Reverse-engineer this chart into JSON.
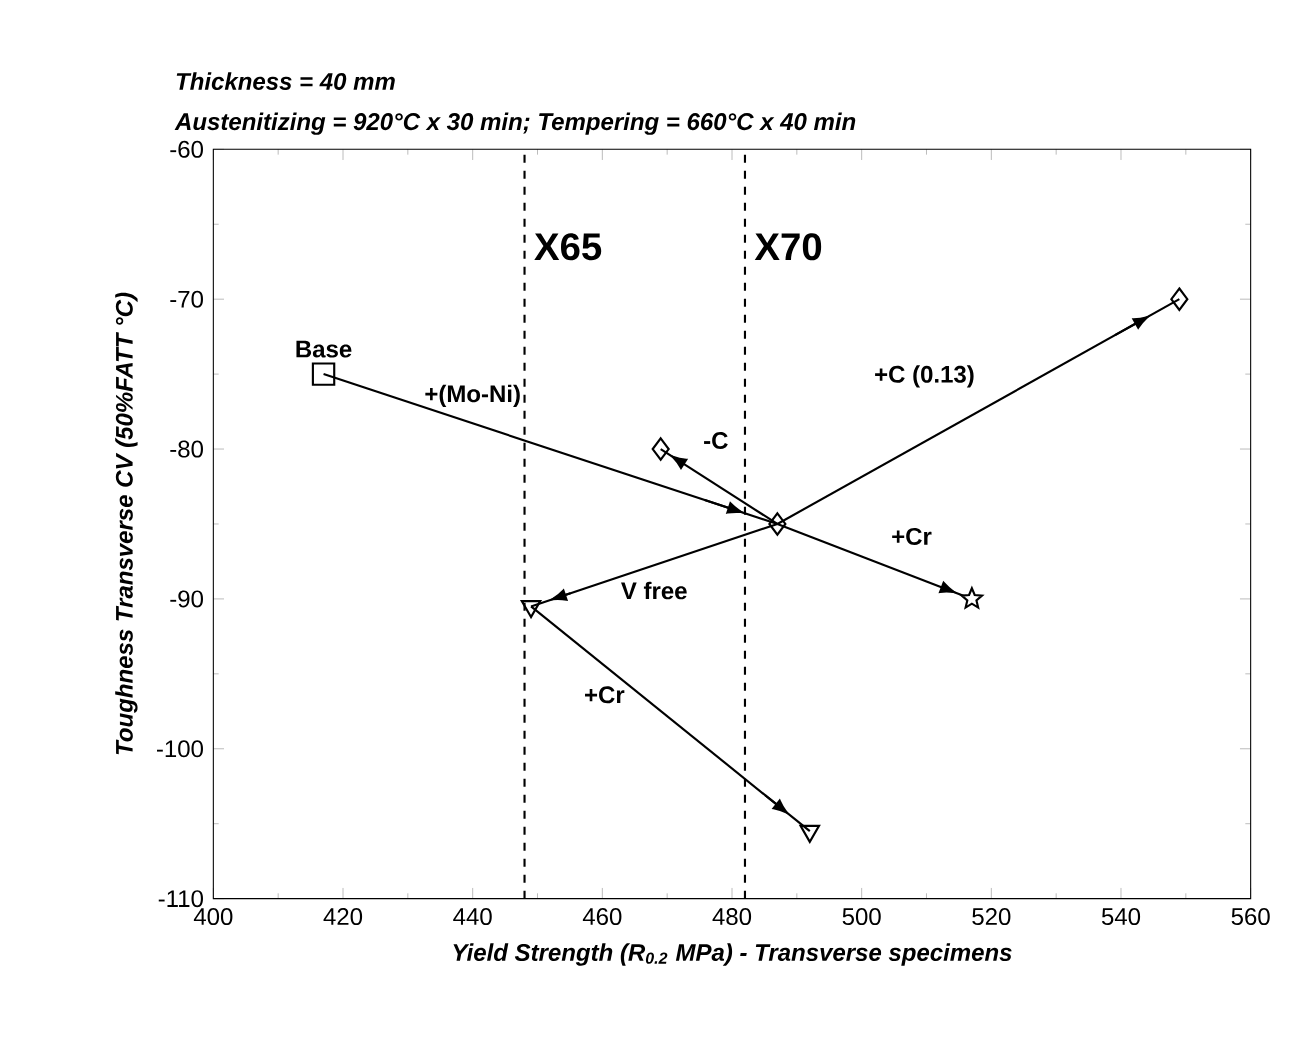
{
  "chart_data": {
    "type": "scatter",
    "title": "Thickness = 40 mm",
    "subtitle": "Austenitizing = 920°C x 30 min; Tempering = 660°C x 40 min",
    "xlabel": "Yield Strength (R$_{0.2}$ MPa) - Transverse specimens",
    "ylabel": "Toughness Transverse CV (50%FATT °C)",
    "xlim": [
      400,
      560
    ],
    "ylim": [
      -110,
      -60
    ],
    "xticks": [
      400,
      420,
      440,
      460,
      480,
      500,
      520,
      540,
      560
    ],
    "yticks": [
      -110,
      -100,
      -90,
      -80,
      -70,
      -60
    ],
    "grid": false,
    "series": [
      {
        "type": "line",
        "marker": "none",
        "color": "#000000",
        "x": [
          417,
          487
        ],
        "values": [
          -75,
          -85
        ]
      },
      {
        "type": "line",
        "marker": "none",
        "color": "#000000",
        "x": [
          487,
          549
        ],
        "values": [
          -85,
          -70
        ]
      },
      {
        "type": "line",
        "marker": "none",
        "color": "#000000",
        "x": [
          487,
          469
        ],
        "values": [
          -85,
          -80
        ]
      },
      {
        "type": "line",
        "marker": "none",
        "color": "#000000",
        "x": [
          487,
          517
        ],
        "values": [
          -85,
          -90
        ]
      },
      {
        "type": "line",
        "marker": "none",
        "color": "#000000",
        "x": [
          487,
          449
        ],
        "values": [
          -85,
          -90.5
        ]
      },
      {
        "type": "line",
        "marker": "none",
        "color": "#000000",
        "x": [
          449,
          492
        ],
        "values": [
          -90.5,
          -105.5
        ]
      },
      {
        "type": "scatter",
        "marker": "square",
        "color": "#000000",
        "x": [
          417
        ],
        "values": [
          -75
        ]
      },
      {
        "type": "scatter",
        "marker": "diamond",
        "color": "#000000",
        "x": [
          469,
          487,
          549
        ],
        "values": [
          -80,
          -85,
          -70
        ]
      },
      {
        "type": "scatter",
        "marker": "star",
        "color": "#000000",
        "x": [
          517
        ],
        "values": [
          -90
        ]
      },
      {
        "type": "scatter",
        "marker": "triangle",
        "color": "#000000",
        "x": [
          449,
          492
        ],
        "values": [
          -90.5,
          -105.5
        ]
      }
    ],
    "ref_lines": [
      {
        "axis": "x",
        "value": 448,
        "label": "X65",
        "line_style": "dashed"
      },
      {
        "axis": "x",
        "value": 482,
        "label": "X70",
        "line_style": "dashed"
      }
    ],
    "annotations": [
      {
        "text": "Base",
        "x": 417,
        "y": -75
      },
      {
        "text": "+(Mo-Ni)",
        "x": 440,
        "y": -78.3
      },
      {
        "text": "-C",
        "x": 473,
        "y": -81.1
      },
      {
        "text": "+C (0.13)",
        "x": 520,
        "y": -77
      },
      {
        "text": "+Cr",
        "x": 502,
        "y": -87.5
      },
      {
        "text": "V free",
        "x": 468,
        "y": -87.75
      },
      {
        "text": "+Cr",
        "x": 466,
        "y": -96.4
      }
    ]
  }
}
